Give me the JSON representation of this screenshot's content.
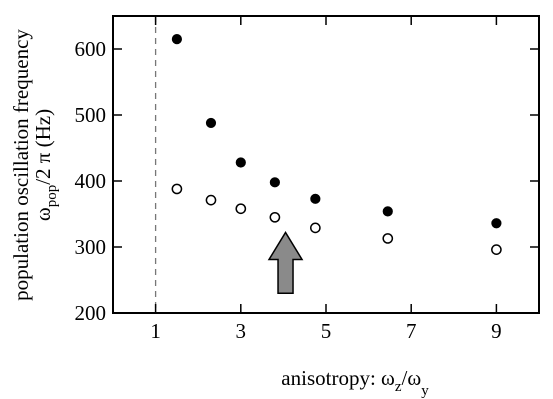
{
  "chart_data": {
    "type": "scatter",
    "xlabel_main": "anisotropy: ω",
    "xlabel_sub1": "z",
    "xlabel_mid": "/ω",
    "xlabel_sub2": "y",
    "ylabel_line1": "population oscillation frequency",
    "ylabel_main": "ω",
    "ylabel_sub": "pop",
    "ylabel_rest": "/2 π  (Hz)",
    "xlim": [
      0,
      10
    ],
    "ylim": [
      200,
      650
    ],
    "xticks": [
      1,
      3,
      5,
      7,
      9
    ],
    "xtick_labels": [
      "1",
      "3",
      "5",
      "7",
      "9"
    ],
    "yticks": [
      200,
      300,
      400,
      500,
      600
    ],
    "ytick_labels": [
      "200",
      "300",
      "400",
      "500",
      "600"
    ],
    "reference_line_x": 1,
    "arrow": {
      "x": 4.05,
      "y_tail": 230,
      "y_head": 322
    },
    "series": [
      {
        "marker": "filled-circle",
        "x": [
          1.5,
          2.3,
          3.0,
          3.8,
          4.75,
          6.45,
          9.0
        ],
        "y": [
          615,
          488,
          428,
          398,
          373,
          354,
          336
        ]
      },
      {
        "marker": "open-circle",
        "x": [
          1.5,
          2.3,
          3.0,
          3.8,
          4.75,
          6.45,
          9.0
        ],
        "y": [
          388,
          371,
          358,
          345,
          329,
          313,
          296
        ]
      }
    ],
    "grid": false,
    "legend": "none"
  }
}
